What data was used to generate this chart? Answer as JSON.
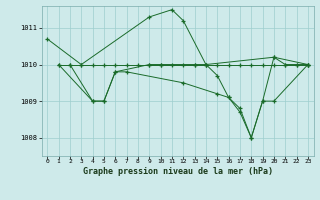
{
  "title": "Graphe pression niveau de la mer (hPa)",
  "background_color": "#ceeaea",
  "line_color": "#1a6b2a",
  "grid_color": "#9ecece",
  "xlim": [
    -0.5,
    23.5
  ],
  "ylim": [
    1007.5,
    1011.6
  ],
  "yticks": [
    1008,
    1009,
    1010,
    1011
  ],
  "xticks": [
    0,
    1,
    2,
    3,
    4,
    5,
    6,
    7,
    8,
    9,
    10,
    11,
    12,
    13,
    14,
    15,
    16,
    17,
    18,
    19,
    20,
    21,
    22,
    23
  ],
  "series1": [
    [
      0,
      1010.7
    ],
    [
      3,
      1010.0
    ],
    [
      9,
      1011.3
    ],
    [
      11,
      1011.5
    ],
    [
      12,
      1011.2
    ],
    [
      14,
      1010.0
    ],
    [
      20,
      1010.2
    ],
    [
      21,
      1010.0
    ],
    [
      22,
      1010.0
    ],
    [
      23,
      1010.0
    ]
  ],
  "series2": [
    [
      1,
      1010.0
    ],
    [
      2,
      1010.0
    ],
    [
      3,
      1010.0
    ],
    [
      4,
      1010.0
    ],
    [
      5,
      1010.0
    ],
    [
      6,
      1010.0
    ],
    [
      7,
      1010.0
    ],
    [
      8,
      1010.0
    ],
    [
      9,
      1010.0
    ],
    [
      10,
      1010.0
    ],
    [
      11,
      1010.0
    ],
    [
      12,
      1010.0
    ],
    [
      13,
      1010.0
    ],
    [
      14,
      1010.0
    ],
    [
      15,
      1010.0
    ],
    [
      16,
      1010.0
    ],
    [
      17,
      1010.0
    ],
    [
      18,
      1010.0
    ],
    [
      19,
      1010.0
    ],
    [
      20,
      1010.0
    ],
    [
      21,
      1010.0
    ],
    [
      22,
      1010.0
    ],
    [
      23,
      1010.0
    ]
  ],
  "series3": [
    [
      1,
      1010.0
    ],
    [
      4,
      1009.0
    ],
    [
      5,
      1009.0
    ],
    [
      6,
      1009.8
    ],
    [
      7,
      1009.8
    ],
    [
      12,
      1009.5
    ],
    [
      15,
      1009.2
    ],
    [
      16,
      1009.1
    ],
    [
      17,
      1008.7
    ],
    [
      18,
      1008.0
    ],
    [
      19,
      1009.0
    ],
    [
      20,
      1009.0
    ],
    [
      23,
      1010.0
    ]
  ],
  "series4": [
    [
      2,
      1010.0
    ],
    [
      4,
      1009.0
    ],
    [
      5,
      1009.0
    ],
    [
      6,
      1009.8
    ],
    [
      9,
      1010.0
    ],
    [
      10,
      1010.0
    ],
    [
      13,
      1010.0
    ],
    [
      14,
      1010.0
    ],
    [
      15,
      1009.7
    ],
    [
      16,
      1009.1
    ],
    [
      17,
      1008.8
    ],
    [
      18,
      1008.0
    ],
    [
      19,
      1009.0
    ],
    [
      20,
      1010.2
    ],
    [
      23,
      1010.0
    ]
  ]
}
